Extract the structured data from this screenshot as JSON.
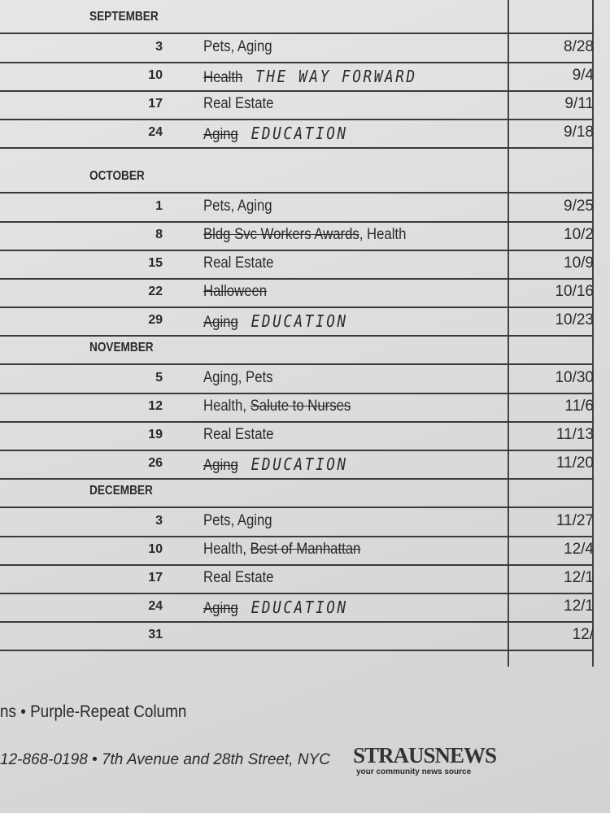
{
  "schedule": {
    "months": [
      {
        "name": "SEPTEMBER",
        "rows": [
          {
            "day": "3",
            "topic": [
              {
                "text": "Pets, Aging",
                "style": "plain"
              }
            ],
            "deadline": "8/28"
          },
          {
            "day": "10",
            "topic": [
              {
                "text": "Health",
                "style": "struck"
              },
              {
                "text": "THE WAY FORWARD",
                "style": "hand"
              }
            ],
            "deadline": "9/4"
          },
          {
            "day": "17",
            "topic": [
              {
                "text": "Real Estate",
                "style": "plain"
              }
            ],
            "deadline": "9/11"
          },
          {
            "day": "24",
            "topic": [
              {
                "text": "Aging",
                "style": "struck"
              },
              {
                "text": "EDUCATION",
                "style": "hand"
              }
            ],
            "deadline": "9/18"
          }
        ]
      },
      {
        "name": "OCTOBER",
        "rows": [
          {
            "day": "1",
            "topic": [
              {
                "text": "Pets, Aging",
                "style": "plain"
              }
            ],
            "deadline": "9/25"
          },
          {
            "day": "8",
            "topic": [
              {
                "text": "Bldg Svc Workers Awards",
                "style": "struck"
              },
              {
                "text": ", Health",
                "style": "plain"
              }
            ],
            "deadline": "10/2"
          },
          {
            "day": "15",
            "topic": [
              {
                "text": "Real Estate",
                "style": "plain"
              }
            ],
            "deadline": "10/9"
          },
          {
            "day": "22",
            "topic": [
              {
                "text": "Halloween",
                "style": "struck"
              }
            ],
            "deadline": "10/16"
          },
          {
            "day": "29",
            "topic": [
              {
                "text": "Aging",
                "style": "struck"
              },
              {
                "text": "EDUCATION",
                "style": "hand"
              }
            ],
            "deadline": "10/23"
          }
        ]
      },
      {
        "name": "NOVEMBER",
        "rows": [
          {
            "day": "5",
            "topic": [
              {
                "text": "Aging, Pets",
                "style": "plain"
              }
            ],
            "deadline": "10/30"
          },
          {
            "day": "12",
            "topic": [
              {
                "text": "Health, ",
                "style": "plain"
              },
              {
                "text": "Salute to Nurses",
                "style": "struck"
              }
            ],
            "deadline": "11/6"
          },
          {
            "day": "19",
            "topic": [
              {
                "text": "Real Estate",
                "style": "plain"
              }
            ],
            "deadline": "11/13"
          },
          {
            "day": "26",
            "topic": [
              {
                "text": "Aging",
                "style": "struck"
              },
              {
                "text": "EDUCATION",
                "style": "hand"
              }
            ],
            "deadline": "11/20"
          }
        ]
      },
      {
        "name": "DECEMBER",
        "rows": [
          {
            "day": "3",
            "topic": [
              {
                "text": "Pets, Aging",
                "style": "plain"
              }
            ],
            "deadline": "11/27"
          },
          {
            "day": "10",
            "topic": [
              {
                "text": "Health, ",
                "style": "plain"
              },
              {
                "text": "Best of Manhattan",
                "style": "struck"
              }
            ],
            "deadline": "12/4"
          },
          {
            "day": "17",
            "topic": [
              {
                "text": "Real Estate",
                "style": "plain"
              }
            ],
            "deadline": "12/1"
          },
          {
            "day": "24",
            "topic": [
              {
                "text": "Aging",
                "style": "struck"
              },
              {
                "text": "EDUCATION",
                "style": "hand"
              }
            ],
            "deadline": "12/1"
          },
          {
            "day": "31",
            "deadline": "12/"
          }
        ]
      }
    ]
  },
  "footer": {
    "legend": "ns • Purple-Repeat Column",
    "contact": "12-868-0198 • 7th Avenue and 28th Street, NYC",
    "logo": "STRAUSNEWS",
    "tagline": "your community news source"
  }
}
